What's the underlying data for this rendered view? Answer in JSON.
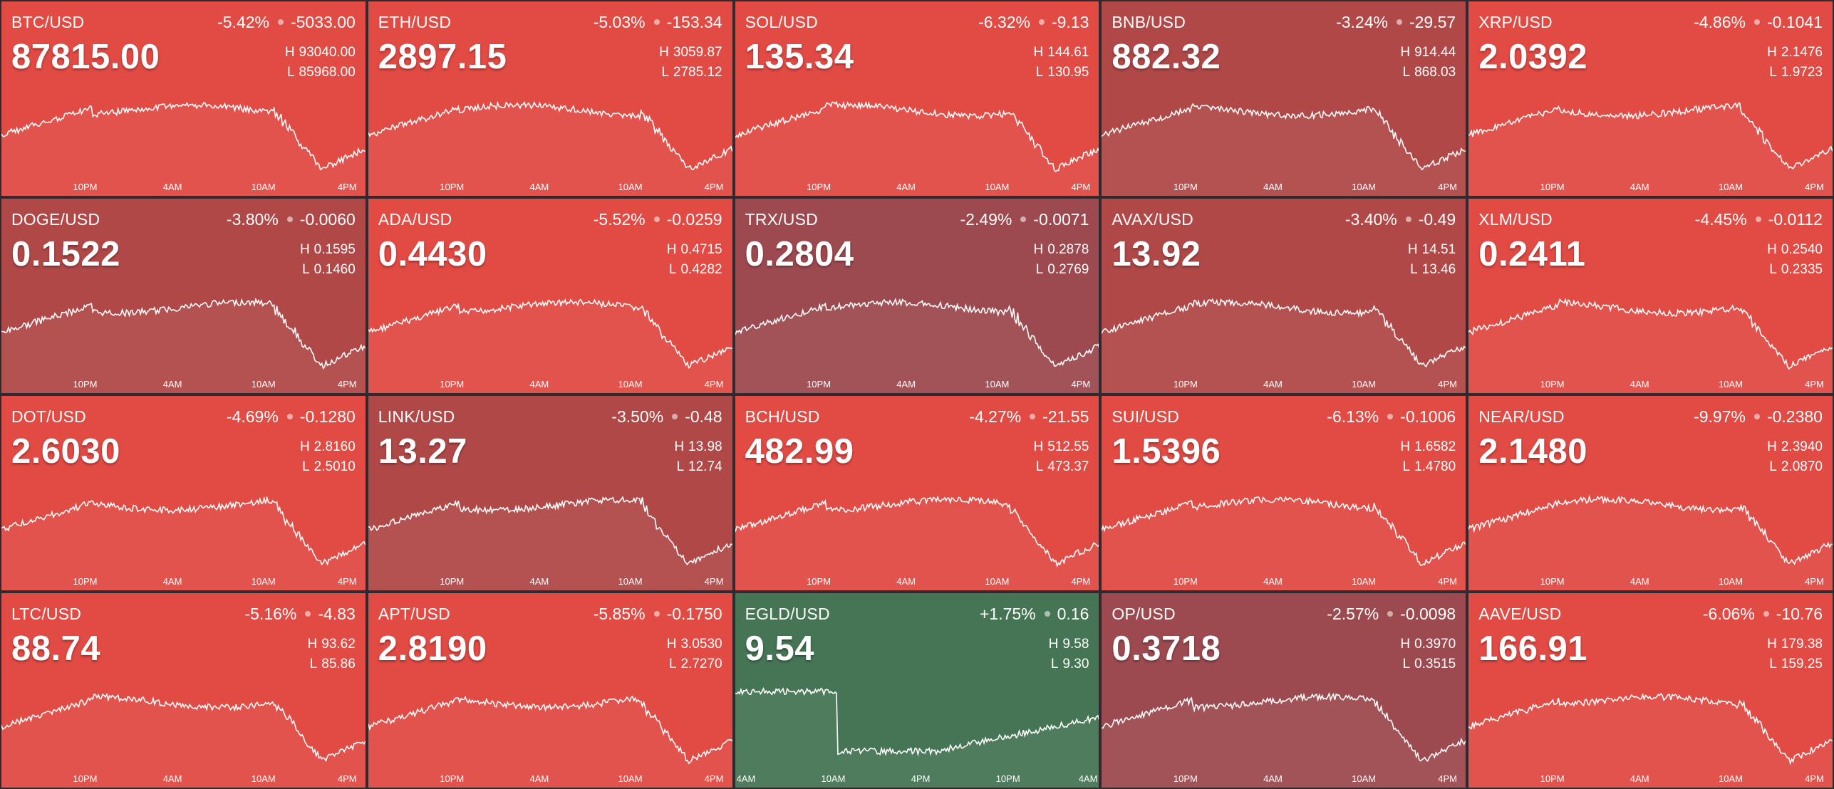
{
  "colors": {
    "red": "#e24a44",
    "dark_red": "#b04848",
    "darker_red": "#9c4a50",
    "green": "#457554",
    "background": "#2b2b30"
  },
  "default_time_labels": [
    "10PM",
    "4AM",
    "10AM",
    "4PM"
  ],
  "tiles": [
    {
      "symbol": "BTC/USD",
      "change_pct": "-5.42%",
      "change_abs": "-5033.00",
      "price": "87815.00",
      "high": "93040.00",
      "low": "85968.00",
      "color": "red"
    },
    {
      "symbol": "ETH/USD",
      "change_pct": "-5.03%",
      "change_abs": "-153.34",
      "price": "2897.15",
      "high": "3059.87",
      "low": "2785.12",
      "color": "red"
    },
    {
      "symbol": "SOL/USD",
      "change_pct": "-6.32%",
      "change_abs": "-9.13",
      "price": "135.34",
      "high": "144.61",
      "low": "130.95",
      "color": "red"
    },
    {
      "symbol": "BNB/USD",
      "change_pct": "-3.24%",
      "change_abs": "-29.57",
      "price": "882.32",
      "high": "914.44",
      "low": "868.03",
      "color": "dark_red"
    },
    {
      "symbol": "XRP/USD",
      "change_pct": "-4.86%",
      "change_abs": "-0.1041",
      "price": "2.0392",
      "high": "2.1476",
      "low": "1.9723",
      "color": "red"
    },
    {
      "symbol": "DOGE/USD",
      "change_pct": "-3.80%",
      "change_abs": "-0.0060",
      "price": "0.1522",
      "high": "0.1595",
      "low": "0.1460",
      "color": "dark_red"
    },
    {
      "symbol": "ADA/USD",
      "change_pct": "-5.52%",
      "change_abs": "-0.0259",
      "price": "0.4430",
      "high": "0.4715",
      "low": "0.4282",
      "color": "red"
    },
    {
      "symbol": "TRX/USD",
      "change_pct": "-2.49%",
      "change_abs": "-0.0071",
      "price": "0.2804",
      "high": "0.2878",
      "low": "0.2769",
      "color": "darker_red"
    },
    {
      "symbol": "AVAX/USD",
      "change_pct": "-3.40%",
      "change_abs": "-0.49",
      "price": "13.92",
      "high": "14.51",
      "low": "13.46",
      "color": "dark_red"
    },
    {
      "symbol": "XLM/USD",
      "change_pct": "-4.45%",
      "change_abs": "-0.0112",
      "price": "0.2411",
      "high": "0.2540",
      "low": "0.2335",
      "color": "red"
    },
    {
      "symbol": "DOT/USD",
      "change_pct": "-4.69%",
      "change_abs": "-0.1280",
      "price": "2.6030",
      "high": "2.8160",
      "low": "2.5010",
      "color": "red"
    },
    {
      "symbol": "LINK/USD",
      "change_pct": "-3.50%",
      "change_abs": "-0.48",
      "price": "13.27",
      "high": "13.98",
      "low": "12.74",
      "color": "dark_red"
    },
    {
      "symbol": "BCH/USD",
      "change_pct": "-4.27%",
      "change_abs": "-21.55",
      "price": "482.99",
      "high": "512.55",
      "low": "473.37",
      "color": "red"
    },
    {
      "symbol": "SUI/USD",
      "change_pct": "-6.13%",
      "change_abs": "-0.1006",
      "price": "1.5396",
      "high": "1.6582",
      "low": "1.4780",
      "color": "red"
    },
    {
      "symbol": "NEAR/USD",
      "change_pct": "-9.97%",
      "change_abs": "-0.2380",
      "price": "2.1480",
      "high": "2.3940",
      "low": "2.0870",
      "color": "red"
    },
    {
      "symbol": "LTC/USD",
      "change_pct": "-5.16%",
      "change_abs": "-4.83",
      "price": "88.74",
      "high": "93.62",
      "low": "85.86",
      "color": "red"
    },
    {
      "symbol": "APT/USD",
      "change_pct": "-5.85%",
      "change_abs": "-0.1750",
      "price": "2.8190",
      "high": "3.0530",
      "low": "2.7270",
      "color": "red"
    },
    {
      "symbol": "EGLD/USD",
      "change_pct": "+1.75%",
      "change_abs": "0.16",
      "price": "9.54",
      "high": "9.58",
      "low": "9.30",
      "color": "green",
      "time_labels": [
        "4AM",
        "10AM",
        "4PM",
        "10PM",
        "4AM"
      ]
    },
    {
      "symbol": "OP/USD",
      "change_pct": "-2.57%",
      "change_abs": "-0.0098",
      "price": "0.3718",
      "high": "0.3970",
      "low": "0.3515",
      "color": "darker_red"
    },
    {
      "symbol": "AAVE/USD",
      "change_pct": "-6.06%",
      "change_abs": "-10.76",
      "price": "166.91",
      "high": "179.38",
      "low": "159.25",
      "color": "red"
    }
  ]
}
